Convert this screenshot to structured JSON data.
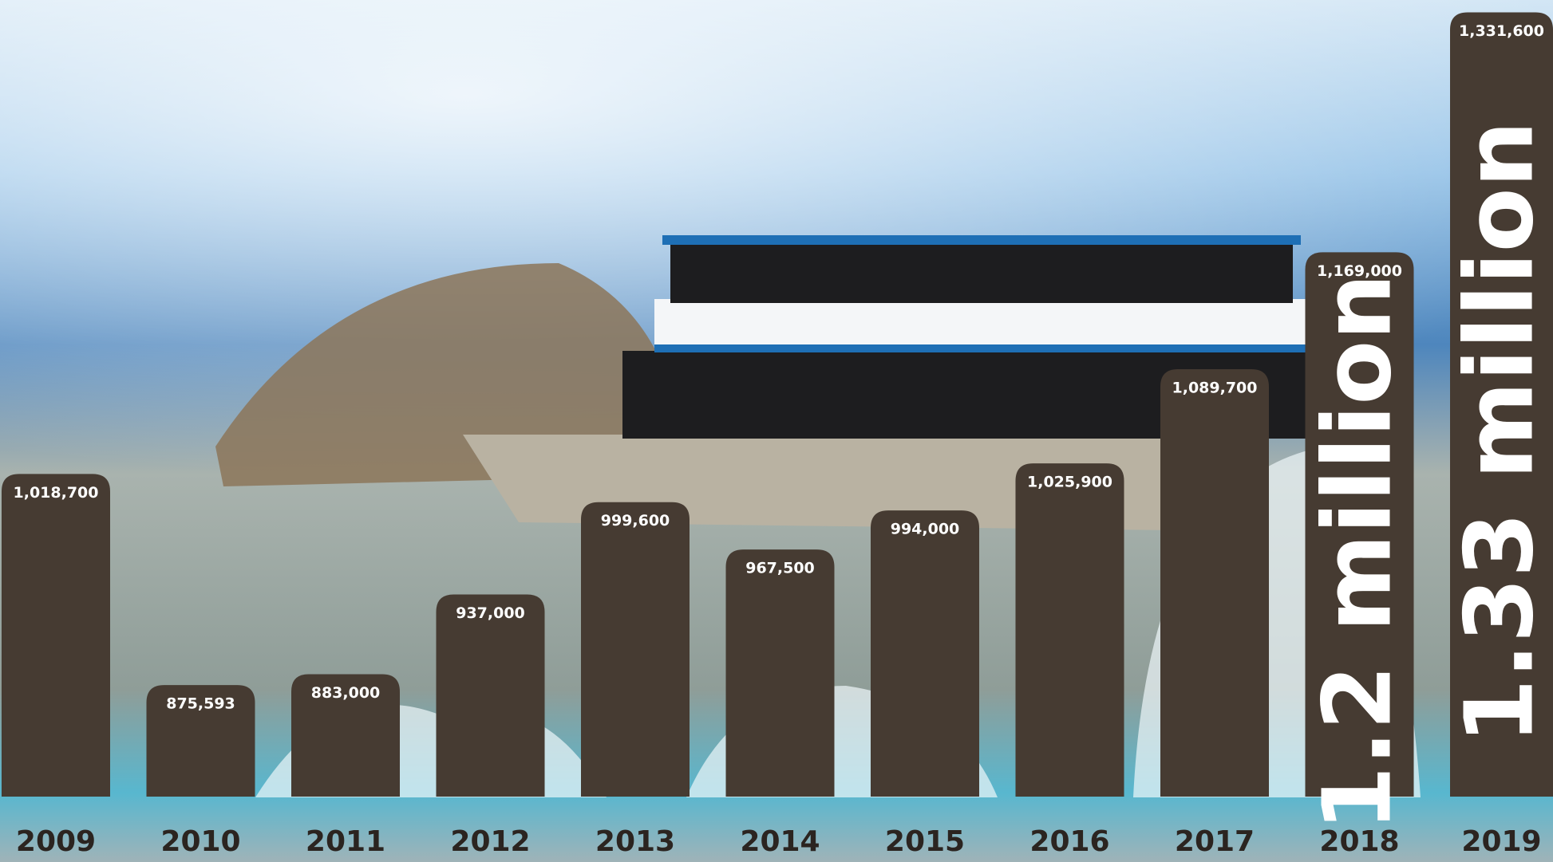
{
  "chart_data": {
    "type": "bar",
    "categories": [
      "2009",
      "2010",
      "2011",
      "2012",
      "2013",
      "2014",
      "2015",
      "2016",
      "2017",
      "2018",
      "2019"
    ],
    "values": [
      1018700,
      875593,
      883000,
      937000,
      999600,
      967500,
      994000,
      1025900,
      1089700,
      1169000,
      1331600
    ],
    "value_labels": [
      "1,018,700",
      "875,593",
      "883,000",
      "937,000",
      "999,600",
      "967,500",
      "994,000",
      "1,025,900",
      "1,089,700",
      "1,169,000",
      "1,331,600"
    ],
    "bar_annotations": [
      null,
      null,
      null,
      null,
      null,
      null,
      null,
      null,
      null,
      "1.2 million",
      "1.33 million"
    ],
    "color": "#463b32",
    "ylim": [
      800000,
      1340000
    ]
  }
}
